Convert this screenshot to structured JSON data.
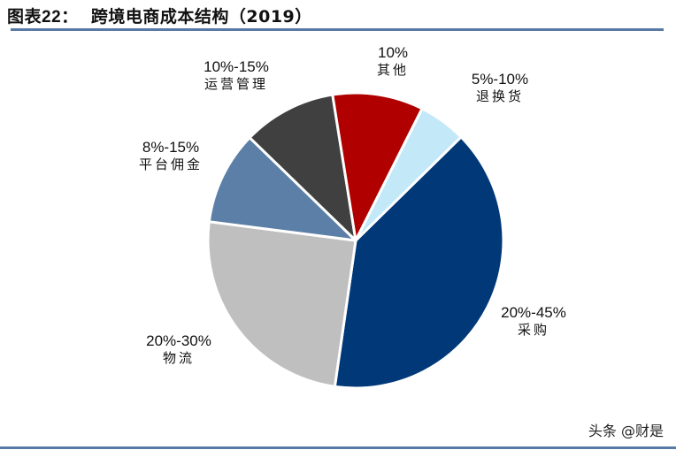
{
  "header": {
    "fig_label": "图表22：",
    "title": "跨境电商成本结构（2019）"
  },
  "footer": {
    "source": "头条 @财是"
  },
  "colors": {
    "rule": "#5a7aa6",
    "procurement": "#003878",
    "logistics": "#bfbfbf",
    "platform": "#5b7fa6",
    "operations": "#404040",
    "other": "#b00000",
    "returns": "#c3e8f8"
  },
  "chart_data": {
    "type": "pie",
    "title": "跨境电商成本结构（2019）",
    "slices": [
      {
        "name": "采购",
        "range": "20%-45%",
        "approx_share": 39.5,
        "color": "#003878"
      },
      {
        "name": "物流",
        "range": "20%-30%",
        "approx_share": 24.7,
        "color": "#bfbfbf"
      },
      {
        "name": "平台佣金",
        "range": "8%-15%",
        "approx_share": 10.2,
        "color": "#5b7fa6"
      },
      {
        "name": "运营管理",
        "range": "10%-15%",
        "approx_share": 10.2,
        "color": "#404040"
      },
      {
        "name": "其他",
        "range": "10%",
        "approx_share": 9.9,
        "color": "#b00000"
      },
      {
        "name": "退换货",
        "range": "5%-10%",
        "approx_share": 5.2,
        "color": "#c3e8f8"
      }
    ],
    "labels": [
      {
        "pct": "20%-45%",
        "name": "采购"
      },
      {
        "pct": "20%-30%",
        "name": "物流"
      },
      {
        "pct": "8%-15%",
        "name": "平台佣金"
      },
      {
        "pct": "10%-15%",
        "name": "运营管理"
      },
      {
        "pct": "10%",
        "name": "其他"
      },
      {
        "pct": "5%-10%",
        "name": "退换货"
      }
    ],
    "legend": "none (data labels outside slices)"
  }
}
